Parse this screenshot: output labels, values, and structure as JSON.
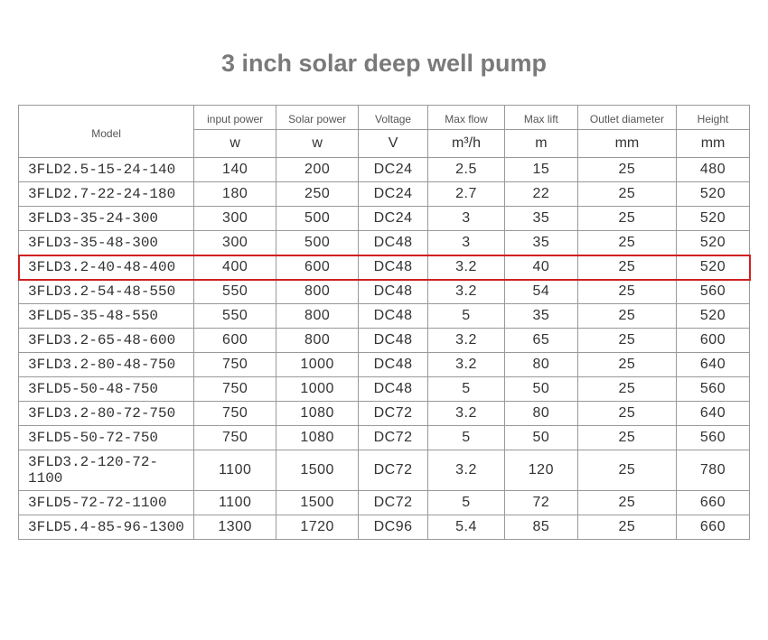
{
  "title": "3 inch solar deep well pump",
  "columns": {
    "model_label": "Model",
    "headers": [
      "input power",
      "Solar power",
      "Voltage",
      "Max flow",
      "Max lift",
      "Outlet diameter",
      "Height"
    ],
    "units": [
      "w",
      "w",
      "V",
      "m³/h",
      "m",
      "mm",
      "mm"
    ]
  },
  "highlight_index": 4,
  "highlight_color": "#d02020",
  "rows": [
    {
      "model": "3FLD2.5-15-24-140",
      "v": [
        "140",
        "200",
        "DC24",
        "2.5",
        "15",
        "25",
        "480"
      ]
    },
    {
      "model": "3FLD2.7-22-24-180",
      "v": [
        "180",
        "250",
        "DC24",
        "2.7",
        "22",
        "25",
        "520"
      ]
    },
    {
      "model": "3FLD3-35-24-300",
      "v": [
        "300",
        "500",
        "DC24",
        "3",
        "35",
        "25",
        "520"
      ]
    },
    {
      "model": "3FLD3-35-48-300",
      "v": [
        "300",
        "500",
        "DC48",
        "3",
        "35",
        "25",
        "520"
      ]
    },
    {
      "model": "3FLD3.2-40-48-400",
      "v": [
        "400",
        "600",
        "DC48",
        "3.2",
        "40",
        "25",
        "520"
      ]
    },
    {
      "model": "3FLD3.2-54-48-550",
      "v": [
        "550",
        "800",
        "DC48",
        "3.2",
        "54",
        "25",
        "560"
      ]
    },
    {
      "model": "3FLD5-35-48-550",
      "v": [
        "550",
        "800",
        "DC48",
        "5",
        "35",
        "25",
        "520"
      ]
    },
    {
      "model": "3FLD3.2-65-48-600",
      "v": [
        "600",
        "800",
        "DC48",
        "3.2",
        "65",
        "25",
        "600"
      ]
    },
    {
      "model": "3FLD3.2-80-48-750",
      "v": [
        "750",
        "1000",
        "DC48",
        "3.2",
        "80",
        "25",
        "640"
      ]
    },
    {
      "model": "3FLD5-50-48-750",
      "v": [
        "750",
        "1000",
        "DC48",
        "5",
        "50",
        "25",
        "560"
      ]
    },
    {
      "model": "3FLD3.2-80-72-750",
      "v": [
        "750",
        "1080",
        "DC72",
        "3.2",
        "80",
        "25",
        "640"
      ]
    },
    {
      "model": "3FLD5-50-72-750",
      "v": [
        "750",
        "1080",
        "DC72",
        "5",
        "50",
        "25",
        "560"
      ]
    },
    {
      "model": "3FLD3.2-120-72-1100",
      "v": [
        "1100",
        "1500",
        "DC72",
        "3.2",
        "120",
        "25",
        "780"
      ]
    },
    {
      "model": "3FLD5-72-72-1100",
      "v": [
        "1100",
        "1500",
        "DC72",
        "5",
        "72",
        "25",
        "660"
      ]
    },
    {
      "model": "3FLD5.4-85-96-1300",
      "v": [
        "1300",
        "1720",
        "DC96",
        "5.4",
        "85",
        "25",
        "660"
      ]
    }
  ]
}
